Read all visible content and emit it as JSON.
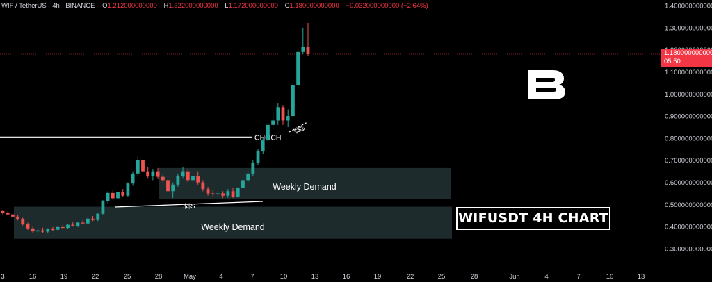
{
  "header": {
    "symbol": "WIF / TetherUS · 4h · BINANCE",
    "open_label": "O",
    "open": "1.212000000000",
    "high_label": "H",
    "high": "1.322000000000",
    "low_label": "L",
    "low": "1.172000000000",
    "close_label": "C",
    "close": "1.180000000000",
    "change": "−0.032000000000 (−2.64%)"
  },
  "price_tag": {
    "price": "1.180000000000",
    "countdown": "05:50"
  },
  "title_box": "WIFUSDT 4H CHART",
  "colors": {
    "up": "#26a69a",
    "down": "#ef5350",
    "zone": "#1e2b2d",
    "last_price": "#f23645"
  },
  "icons": {
    "logo": "b-logo-icon"
  },
  "chart_data": {
    "type": "candlestick",
    "y_axis_labels": [
      "1.400000000000",
      "1.300000000000",
      "1.200000000000",
      "1.100000000000",
      "1.000000000000",
      "0.900000000000",
      "0.800000000000",
      "0.700000000000",
      "0.600000000000",
      "0.500000000000",
      "0.400000000000",
      "0.300000000000"
    ],
    "y_axis_values": [
      1.4,
      1.3,
      1.2,
      1.1,
      1.0,
      0.9,
      0.8,
      0.7,
      0.6,
      0.5,
      0.4,
      0.3
    ],
    "x_axis_labels": [
      "3",
      "16",
      "19",
      "22",
      "25",
      "28",
      "May",
      "4",
      "7",
      "10",
      "13",
      "16",
      "19",
      "22",
      "25",
      "28",
      "Jun",
      "4",
      "7",
      "10",
      "13"
    ],
    "last_price": 1.18,
    "candles_4h_approx": [
      [
        0.47,
        0.475,
        0.455,
        0.462
      ],
      [
        0.462,
        0.468,
        0.45,
        0.455
      ],
      [
        0.455,
        0.46,
        0.44,
        0.445
      ],
      [
        0.445,
        0.452,
        0.428,
        0.435
      ],
      [
        0.435,
        0.44,
        0.405,
        0.41
      ],
      [
        0.41,
        0.418,
        0.385,
        0.392
      ],
      [
        0.392,
        0.4,
        0.37,
        0.378
      ],
      [
        0.378,
        0.388,
        0.365,
        0.383
      ],
      [
        0.383,
        0.395,
        0.372,
        0.377
      ],
      [
        0.377,
        0.392,
        0.37,
        0.388
      ],
      [
        0.388,
        0.398,
        0.38,
        0.386
      ],
      [
        0.386,
        0.402,
        0.382,
        0.398
      ],
      [
        0.398,
        0.41,
        0.39,
        0.394
      ],
      [
        0.394,
        0.412,
        0.39,
        0.408
      ],
      [
        0.408,
        0.42,
        0.4,
        0.404
      ],
      [
        0.404,
        0.422,
        0.398,
        0.418
      ],
      [
        0.418,
        0.43,
        0.41,
        0.414
      ],
      [
        0.414,
        0.44,
        0.41,
        0.436
      ],
      [
        0.436,
        0.448,
        0.425,
        0.43
      ],
      [
        0.43,
        0.462,
        0.425,
        0.458
      ],
      [
        0.458,
        0.52,
        0.455,
        0.515
      ],
      [
        0.515,
        0.56,
        0.505,
        0.552
      ],
      [
        0.552,
        0.565,
        0.52,
        0.528
      ],
      [
        0.528,
        0.56,
        0.52,
        0.555
      ],
      [
        0.555,
        0.57,
        0.535,
        0.54
      ],
      [
        0.54,
        0.6,
        0.535,
        0.595
      ],
      [
        0.595,
        0.65,
        0.585,
        0.64
      ],
      [
        0.64,
        0.72,
        0.63,
        0.7
      ],
      [
        0.7,
        0.71,
        0.64,
        0.65
      ],
      [
        0.65,
        0.67,
        0.62,
        0.63
      ],
      [
        0.63,
        0.66,
        0.61,
        0.65
      ],
      [
        0.65,
        0.665,
        0.615,
        0.625
      ],
      [
        0.625,
        0.64,
        0.6,
        0.61
      ],
      [
        0.61,
        0.625,
        0.55,
        0.56
      ],
      [
        0.56,
        0.6,
        0.53,
        0.59
      ],
      [
        0.59,
        0.64,
        0.58,
        0.63
      ],
      [
        0.63,
        0.67,
        0.62,
        0.65
      ],
      [
        0.65,
        0.66,
        0.6,
        0.61
      ],
      [
        0.61,
        0.64,
        0.595,
        0.63
      ],
      [
        0.63,
        0.65,
        0.59,
        0.6
      ],
      [
        0.6,
        0.61,
        0.56,
        0.57
      ],
      [
        0.57,
        0.58,
        0.54,
        0.55
      ],
      [
        0.55,
        0.565,
        0.535,
        0.545
      ],
      [
        0.545,
        0.56,
        0.53,
        0.55
      ],
      [
        0.55,
        0.56,
        0.53,
        0.54
      ],
      [
        0.54,
        0.57,
        0.53,
        0.56
      ],
      [
        0.56,
        0.575,
        0.53,
        0.535
      ],
      [
        0.535,
        0.58,
        0.53,
        0.575
      ],
      [
        0.575,
        0.62,
        0.565,
        0.61
      ],
      [
        0.61,
        0.65,
        0.6,
        0.64
      ],
      [
        0.64,
        0.7,
        0.63,
        0.69
      ],
      [
        0.69,
        0.75,
        0.68,
        0.74
      ],
      [
        0.74,
        0.8,
        0.73,
        0.79
      ],
      [
        0.79,
        0.87,
        0.78,
        0.86
      ],
      [
        0.86,
        0.92,
        0.84,
        0.88
      ],
      [
        0.88,
        0.96,
        0.86,
        0.94
      ],
      [
        0.94,
        0.95,
        0.86,
        0.88
      ],
      [
        0.88,
        0.93,
        0.85,
        0.9
      ],
      [
        0.9,
        1.05,
        0.89,
        1.04
      ],
      [
        1.04,
        1.2,
        1.03,
        1.19
      ],
      [
        1.19,
        1.3,
        1.18,
        1.212
      ],
      [
        1.212,
        1.322,
        1.172,
        1.18
      ]
    ],
    "annotations": [
      {
        "type": "zone",
        "label": "Weekly Demand",
        "from": 0.49,
        "to": 0.345
      },
      {
        "type": "zone",
        "label": "Weekly Demand",
        "from": 0.665,
        "to": 0.525
      },
      {
        "type": "hline",
        "label": "CHOCH",
        "price": 0.805
      },
      {
        "type": "liquidity",
        "label": "$$$",
        "price": 0.515
      },
      {
        "type": "liquidity",
        "label": "$$$",
        "price": 0.87
      }
    ],
    "labels": {
      "choch": "CHOCH",
      "liquidity": "$$$",
      "demand": "Weekly Demand"
    }
  }
}
